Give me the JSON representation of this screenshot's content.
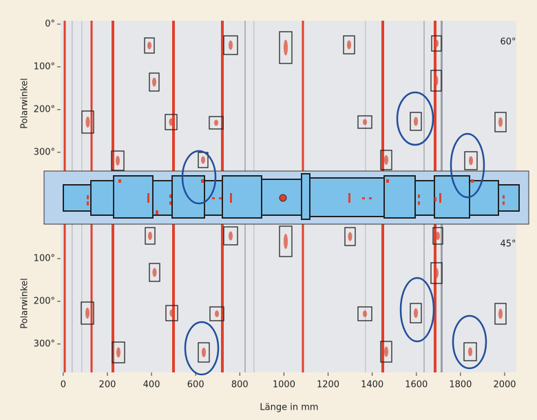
{
  "top_panel": {
    "angle_label": "60°",
    "y_axis_label": "Polarwinkel",
    "ylim": [
      0,
      360
    ],
    "yticks": [
      {
        "value": 0,
        "label": "0°"
      },
      {
        "value": 100,
        "label": "100°"
      },
      {
        "value": 200,
        "label": "200°"
      },
      {
        "value": 300,
        "label": "300°"
      }
    ]
  },
  "bottom_panel": {
    "angle_label": "45°",
    "y_axis_label": "Polarwinkel",
    "ylim": [
      0,
      360
    ],
    "yticks": [
      {
        "value": 100,
        "label": "100°"
      },
      {
        "value": 200,
        "label": "200°"
      },
      {
        "value": 300,
        "label": "300°"
      }
    ]
  },
  "x_axis": {
    "label": "Länge in mm",
    "xlim": [
      -12,
      2053
    ],
    "xticks": [
      0,
      200,
      400,
      600,
      800,
      1000,
      1200,
      1400,
      1600,
      1800,
      2000
    ]
  }
}
